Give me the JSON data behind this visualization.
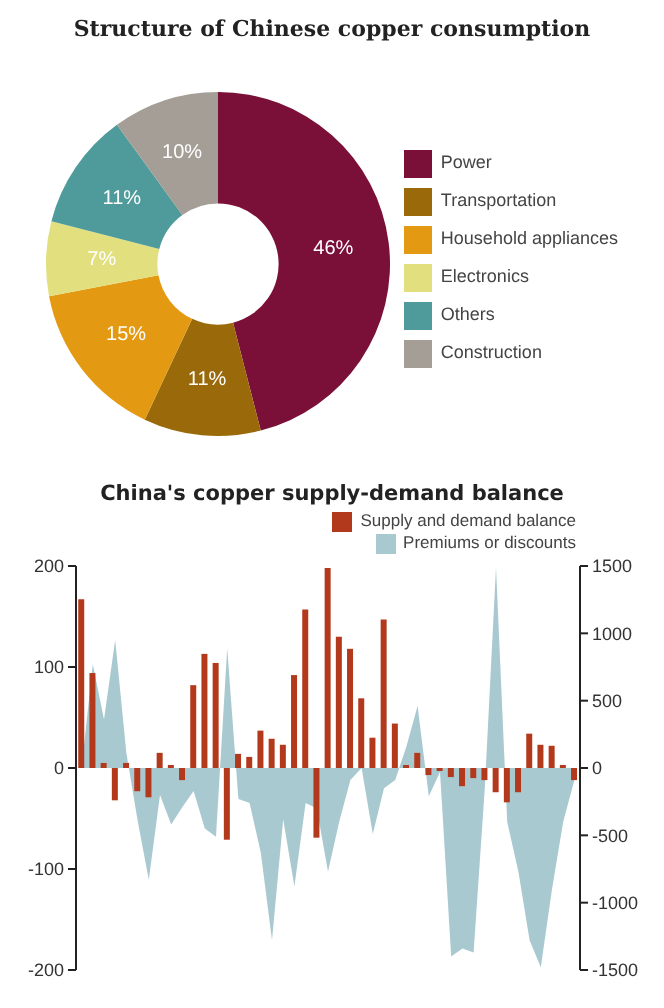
{
  "chart_data": [
    {
      "type": "donut",
      "title": "Structure of Chinese copper consumption",
      "categories": [
        "Power",
        "Transportation",
        "Household appliances",
        "Electronics",
        "Others",
        "Construction"
      ],
      "values": [
        46,
        11,
        15,
        7,
        11,
        10
      ],
      "value_labels": [
        "46%",
        "11%",
        "15%",
        "7%",
        "11%",
        "10%"
      ],
      "colors": [
        "#7a1038",
        "#9a6a0a",
        "#e39a12",
        "#e2e07e",
        "#4f9a9a",
        "#a59e96"
      ],
      "legend": "right"
    },
    {
      "type": "bar",
      "title": "China's copper supply-demand balance",
      "categories": [
        null,
        null,
        null,
        null,
        null,
        null,
        null,
        null,
        null,
        null,
        null,
        null,
        null,
        null,
        null,
        null,
        null,
        null,
        null,
        null,
        null,
        null,
        null,
        null,
        null,
        null,
        null,
        null,
        null,
        null,
        null,
        null,
        null,
        null,
        null,
        null,
        null,
        null,
        null,
        null,
        null,
        null,
        null,
        null,
        null
      ],
      "series": [
        {
          "name": "Supply and demand balance",
          "type": "bar",
          "color": "#b3391c",
          "values": [
            167,
            94,
            5,
            -32,
            5,
            -23,
            -29,
            15,
            3,
            -12,
            82,
            113,
            104,
            -71,
            14,
            11,
            37,
            29,
            23,
            92,
            157,
            -69,
            198,
            130,
            118,
            69,
            30,
            147,
            44,
            3,
            15,
            -7,
            -3,
            -9,
            -18,
            -10,
            -12,
            -24,
            -34,
            -24,
            34,
            23,
            22,
            3,
            -12
          ]
        },
        {
          "name": "Premiums or discounts",
          "type": "area",
          "axis": "y2",
          "color": "#a9c9d1",
          "values": [
            0,
            770,
            360,
            950,
            110,
            -390,
            -830,
            -200,
            -420,
            -290,
            -170,
            -450,
            -510,
            890,
            -230,
            -260,
            -630,
            -1280,
            -380,
            -880,
            -260,
            -300,
            -770,
            -400,
            -90,
            0,
            -490,
            -150,
            -90,
            160,
            460,
            -210,
            -30,
            -1400,
            -1340,
            -1370,
            -150,
            1490,
            -400,
            -770,
            -1280,
            -1480,
            -900,
            -400,
            -90
          ]
        }
      ],
      "ylim": [
        -200,
        200
      ],
      "yticks": [
        -200,
        -100,
        0,
        100,
        200
      ],
      "y2lim": [
        -1500,
        1500
      ],
      "y2ticks": [
        -1500,
        -1000,
        -500,
        0,
        500,
        1000,
        1500
      ],
      "tick_labels": "y",
      "legend": "top right"
    }
  ]
}
